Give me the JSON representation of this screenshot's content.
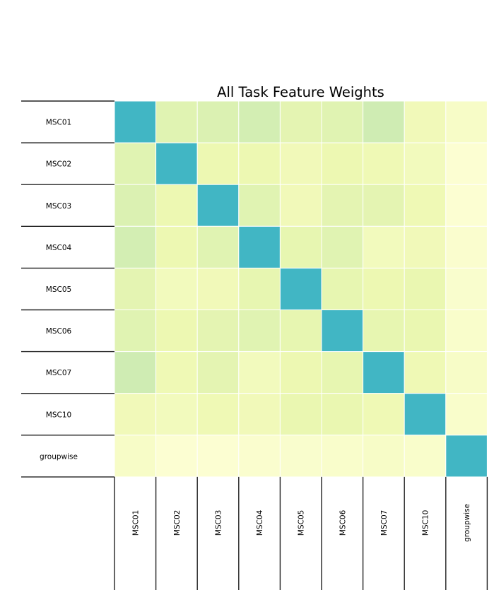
{
  "chart_data": {
    "type": "heatmap",
    "title": "All Task Feature Weights",
    "rows": [
      "MSC01",
      "MSC02",
      "MSC03",
      "MSC04",
      "MSC05",
      "MSC06",
      "MSC07",
      "MSC10",
      "groupwise"
    ],
    "columns": [
      "MSC01",
      "MSC02",
      "MSC03",
      "MSC04",
      "MSC05",
      "MSC06",
      "MSC07",
      "MSC10",
      "groupwise"
    ],
    "values": [
      [
        1.0,
        0.3,
        0.33,
        0.38,
        0.28,
        0.3,
        0.4,
        0.18,
        0.1
      ],
      [
        0.3,
        1.0,
        0.22,
        0.22,
        0.18,
        0.22,
        0.2,
        0.16,
        0.04
      ],
      [
        0.33,
        0.22,
        1.0,
        0.3,
        0.18,
        0.28,
        0.28,
        0.2,
        0.04
      ],
      [
        0.38,
        0.22,
        0.3,
        1.0,
        0.26,
        0.3,
        0.16,
        0.18,
        0.06
      ],
      [
        0.28,
        0.16,
        0.18,
        0.26,
        1.0,
        0.26,
        0.22,
        0.24,
        0.07
      ],
      [
        0.3,
        0.22,
        0.28,
        0.3,
        0.26,
        1.0,
        0.26,
        0.24,
        0.08
      ],
      [
        0.4,
        0.2,
        0.28,
        0.16,
        0.22,
        0.26,
        1.0,
        0.2,
        0.1
      ],
      [
        0.18,
        0.16,
        0.2,
        0.18,
        0.24,
        0.24,
        0.2,
        1.0,
        0.08
      ],
      [
        0.1,
        0.04,
        0.04,
        0.06,
        0.07,
        0.08,
        0.1,
        0.08,
        1.0
      ]
    ],
    "colorscale": [
      "#ffffd9",
      "#edf8b1",
      "#c7e9b4",
      "#7fcdbb",
      "#41b6c4"
    ],
    "grid": false
  }
}
